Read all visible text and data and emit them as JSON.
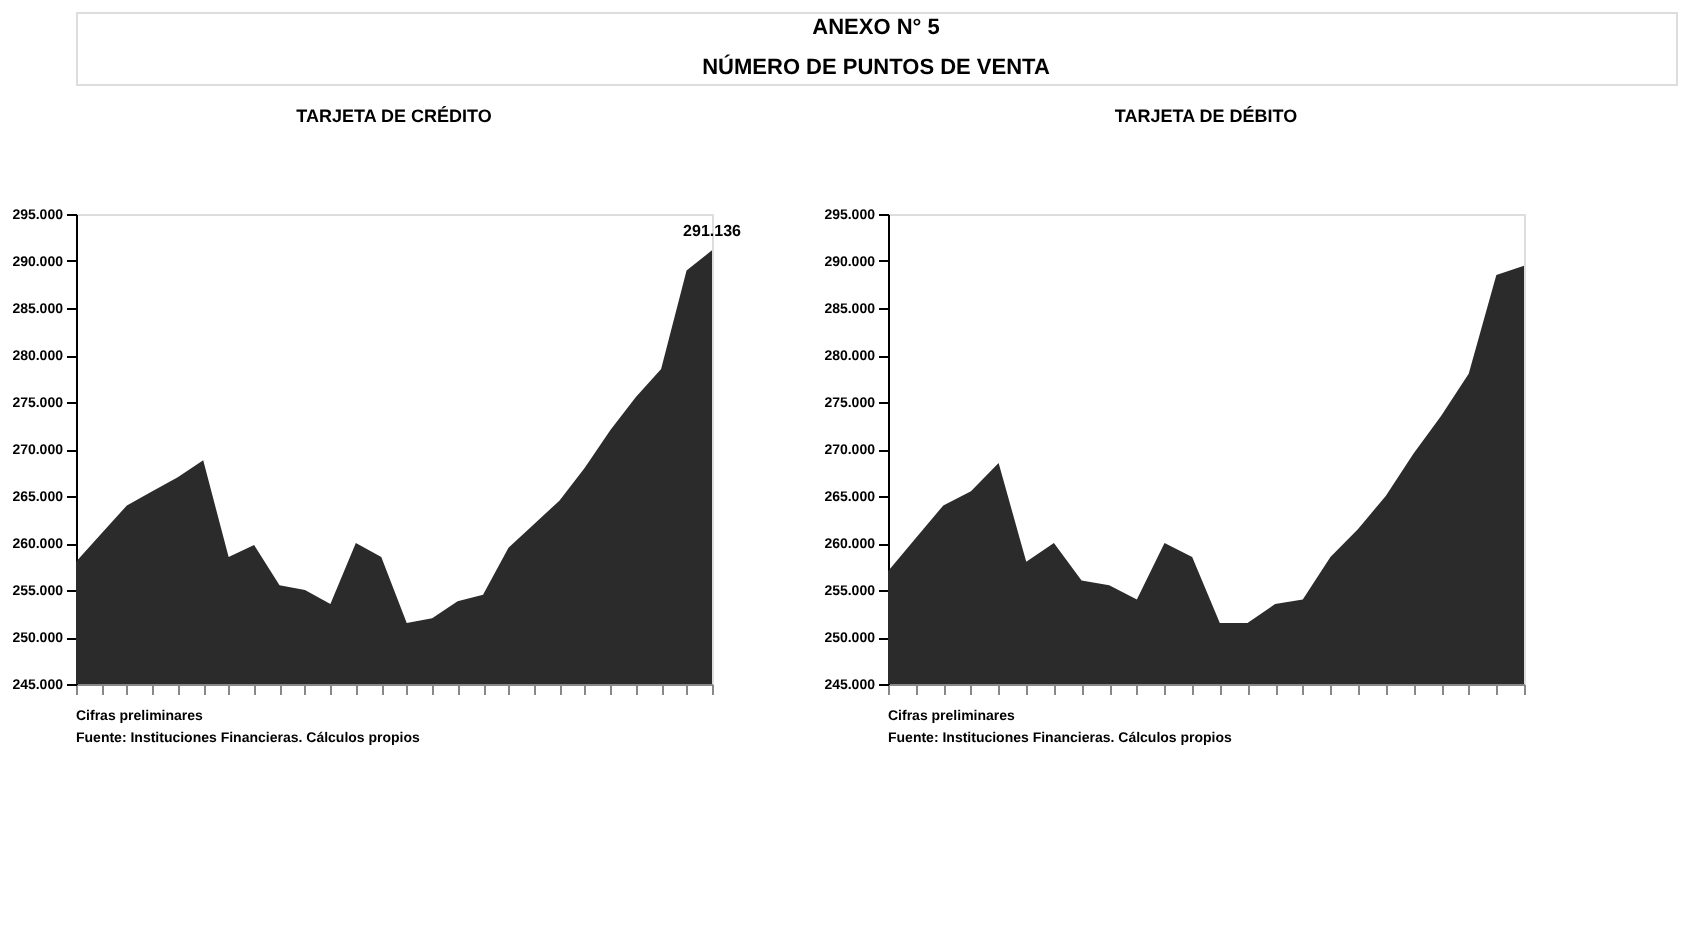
{
  "chart_data": [
    {
      "type": "other",
      "title": "ANEXO N° 5",
      "subtitle": "NÚMERO DE PUNTOS DE VENTA"
    },
    {
      "type": "area",
      "title": "TARJETA DE CRÉDITO",
      "categories": [
        null,
        null,
        null,
        null,
        null,
        null,
        null,
        null,
        null,
        null,
        null,
        null,
        null,
        null,
        null,
        null,
        null,
        null,
        null,
        null,
        null,
        null,
        null,
        null,
        null,
        null
      ],
      "series": [
        {
          "color": "#2b2b2b",
          "values": [
            258000,
            261000,
            264000,
            265500,
            267000,
            268800,
            258500,
            259800,
            255500,
            255000,
            253500,
            260000,
            258500,
            251500,
            252000,
            253800,
            254500,
            259500,
            262000,
            264500,
            268000,
            272000,
            275500,
            278500,
            289000,
            291136
          ],
          "value_labels": [
            null,
            null,
            null,
            null,
            null,
            null,
            null,
            null,
            null,
            null,
            null,
            null,
            null,
            null,
            null,
            null,
            null,
            null,
            null,
            null,
            null,
            null,
            null,
            null,
            null,
            "291.136"
          ]
        }
      ],
      "ylim": [
        245000,
        295000
      ],
      "yticks": [
        {
          "value": 245000,
          "label": "245.000"
        },
        {
          "value": 250000,
          "label": "250.000"
        },
        {
          "value": 255000,
          "label": "255.000"
        },
        {
          "value": 260000,
          "label": "260.000"
        },
        {
          "value": 265000,
          "label": "265.000"
        },
        {
          "value": 270000,
          "label": "270.000"
        },
        {
          "value": 275000,
          "label": "275.000"
        },
        {
          "value": 280000,
          "label": "280.000"
        },
        {
          "value": 285000,
          "label": "285.000"
        },
        {
          "value": 290000,
          "label": "290.000"
        },
        {
          "value": 295000,
          "label": "295.000"
        }
      ],
      "grid": false,
      "annotations": [
        "Cifras preliminares",
        "Fuente: Instituciones Financieras. Cálculos propios"
      ]
    },
    {
      "type": "area",
      "title": "TARJETA DE DÉBITO",
      "categories": [
        null,
        null,
        null,
        null,
        null,
        null,
        null,
        null,
        null,
        null,
        null,
        null,
        null,
        null,
        null,
        null,
        null,
        null,
        null,
        null,
        null,
        null,
        null,
        null
      ],
      "series": [
        {
          "color": "#2b2b2b",
          "values": [
            257000,
            260500,
            264000,
            265500,
            268500,
            258000,
            260000,
            256000,
            255500,
            254000,
            260000,
            258500,
            251500,
            251500,
            253500,
            254000,
            258500,
            261500,
            265000,
            269500,
            273500,
            278000,
            288500,
            289500
          ]
        }
      ],
      "ylim": [
        245000,
        295000
      ],
      "yticks": [
        {
          "value": 245000,
          "label": "245.000"
        },
        {
          "value": 250000,
          "label": "250.000"
        },
        {
          "value": 255000,
          "label": "255.000"
        },
        {
          "value": 260000,
          "label": "260.000"
        },
        {
          "value": 265000,
          "label": "265.000"
        },
        {
          "value": 270000,
          "label": "270.000"
        },
        {
          "value": 275000,
          "label": "275.000"
        },
        {
          "value": 280000,
          "label": "280.000"
        },
        {
          "value": 285000,
          "label": "285.000"
        },
        {
          "value": 290000,
          "label": "290.000"
        },
        {
          "value": 295000,
          "label": "295.000"
        }
      ],
      "grid": false,
      "annotations": [
        "Cifras preliminares",
        "Fuente: Instituciones Financieras. Cálculos propios"
      ]
    }
  ]
}
